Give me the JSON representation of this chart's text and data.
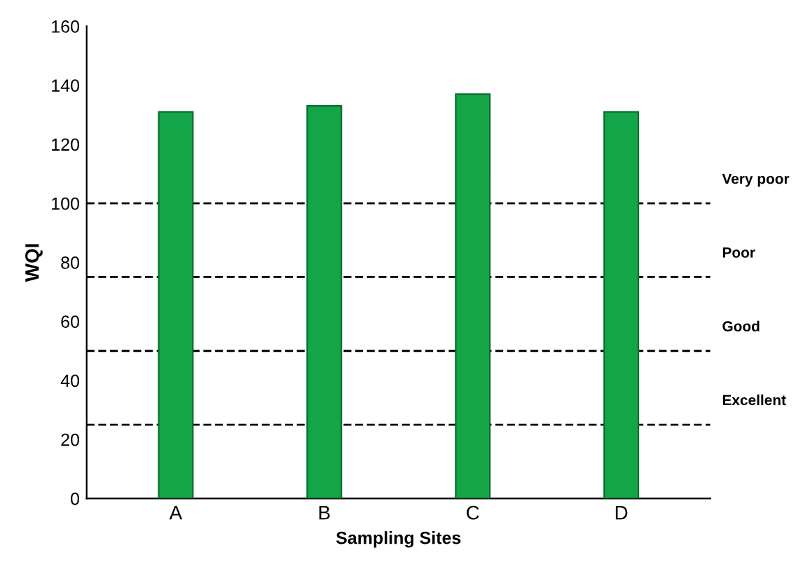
{
  "chart_data": {
    "type": "bar",
    "xlabel": "Sampling Sites",
    "ylabel": "WQI",
    "categories": [
      "A",
      "B",
      "C",
      "D"
    ],
    "values": [
      131,
      133,
      137,
      131
    ],
    "color": "#13a548",
    "ylim": [
      0,
      160
    ],
    "yticks": [
      0,
      20,
      40,
      60,
      80,
      100,
      120,
      140,
      160
    ],
    "grid": false,
    "ref_lines": [
      {
        "axis": "y",
        "value": 100,
        "label": "Very poor",
        "color": "#000000",
        "line_style": "dashed"
      },
      {
        "axis": "y",
        "value": 75,
        "label": "Poor",
        "color": "#000000",
        "line_style": "dashed"
      },
      {
        "axis": "y",
        "value": 50,
        "label": "Good",
        "color": "#000000",
        "line_style": "dashed"
      },
      {
        "axis": "y",
        "value": 25,
        "label": "Excellent",
        "color": "#000000",
        "line_style": "dashed"
      }
    ]
  }
}
